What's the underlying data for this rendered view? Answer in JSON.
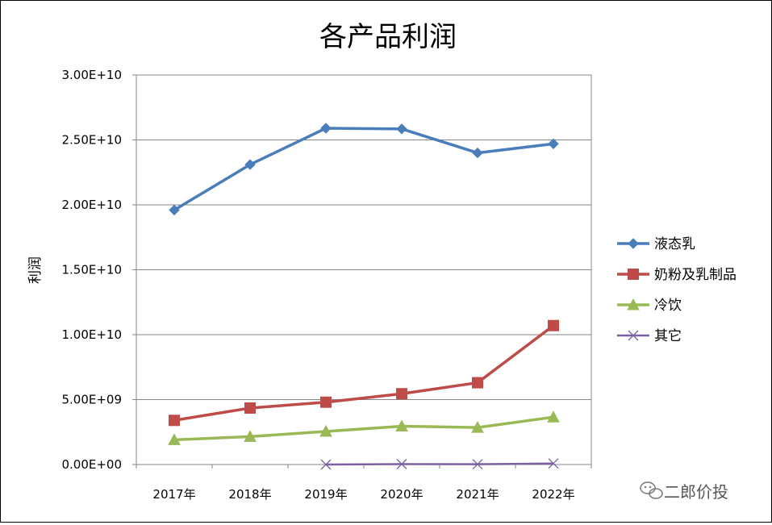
{
  "chart_data": {
    "type": "line",
    "title": "各产品利润",
    "xlabel": "",
    "ylabel": "利润",
    "categories": [
      "2017年",
      "2018年",
      "2019年",
      "2020年",
      "2021年",
      "2022年"
    ],
    "ylim": [
      0,
      30000000000
    ],
    "yticks": [
      0,
      5000000000,
      10000000000,
      15000000000,
      20000000000,
      25000000000,
      30000000000
    ],
    "ytick_labels": [
      "0.00E+00",
      "5.00E+09",
      "1.00E+10",
      "1.50E+10",
      "2.00E+10",
      "2.50E+10",
      "3.00E+10"
    ],
    "grid": true,
    "legend_position": "right",
    "series": [
      {
        "name": "液态乳",
        "color": "#4a7ebb",
        "marker": "diamond",
        "values": [
          19600000000,
          23100000000,
          25900000000,
          25850000000,
          24000000000,
          24700000000
        ]
      },
      {
        "name": "奶粉及乳制品",
        "color": "#be4b48",
        "marker": "square",
        "values": [
          3400000000,
          4350000000,
          4800000000,
          5450000000,
          6300000000,
          10700000000
        ]
      },
      {
        "name": "冷饮",
        "color": "#98b954",
        "marker": "triangle",
        "values": [
          1900000000,
          2150000000,
          2550000000,
          2950000000,
          2850000000,
          3650000000
        ]
      },
      {
        "name": "其它",
        "color": "#7d60a0",
        "marker": "x",
        "values": [
          null,
          null,
          0,
          30000000,
          20000000,
          80000000
        ]
      }
    ]
  },
  "watermark": {
    "text": "二郎价投",
    "icon": "wechat-icon"
  }
}
